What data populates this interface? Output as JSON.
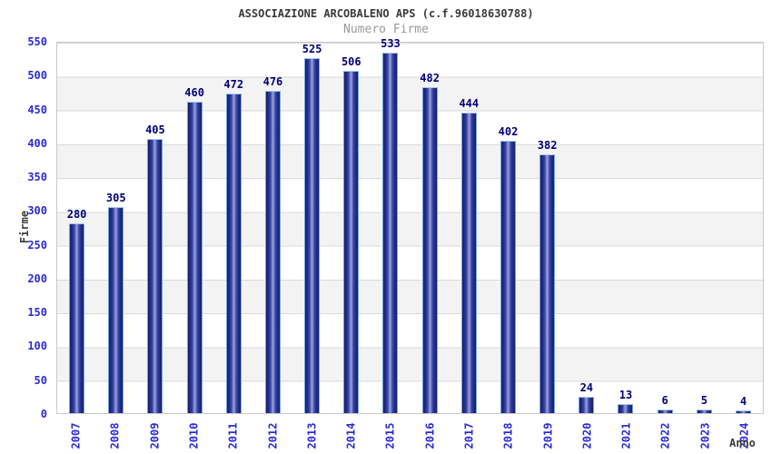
{
  "header": {
    "title": "ASSOCIAZIONE ARCOBALENO APS (c.f.96018630788)",
    "subtitle": "Numero Firme"
  },
  "chart_data": {
    "type": "bar",
    "title": "ASSOCIAZIONE ARCOBALENO APS (c.f.96018630788)",
    "subtitle": "Numero Firme",
    "xlabel": "Anno",
    "ylabel": "Firme",
    "categories": [
      "2007",
      "2008",
      "2009",
      "2010",
      "2011",
      "2012",
      "2013",
      "2014",
      "2015",
      "2016",
      "2017",
      "2018",
      "2019",
      "2020",
      "2021",
      "2022",
      "2023",
      "2024"
    ],
    "values": [
      280,
      305,
      405,
      460,
      472,
      476,
      525,
      506,
      533,
      482,
      444,
      402,
      382,
      24,
      13,
      6,
      5,
      4
    ],
    "ylim": [
      0,
      550
    ],
    "ytick_step": 50,
    "yticks": [
      0,
      50,
      100,
      150,
      200,
      250,
      300,
      350,
      400,
      450,
      500,
      550
    ],
    "grid": true,
    "grid_style": "horizontal lines every 50 with alternating white/gray bands",
    "legend": null,
    "bar_value_labels": true,
    "x_tick_rotation": -90
  },
  "colors": {
    "title_color": "#3a3a3a",
    "subtitle_color": "#9a9a9a",
    "tick_color": "#2b2bd5",
    "value_color": "#000078",
    "band_gray": "#f3f3f3",
    "grid_line": "#dadada",
    "plot_border": "#c9c9c9",
    "bar_dark": "#171f6d",
    "bar_mid": "#3a46a4",
    "bar_light": "#9aa5e0",
    "bar_border": "#74a7e0",
    "bar_border_top": "#a6c8f0"
  }
}
